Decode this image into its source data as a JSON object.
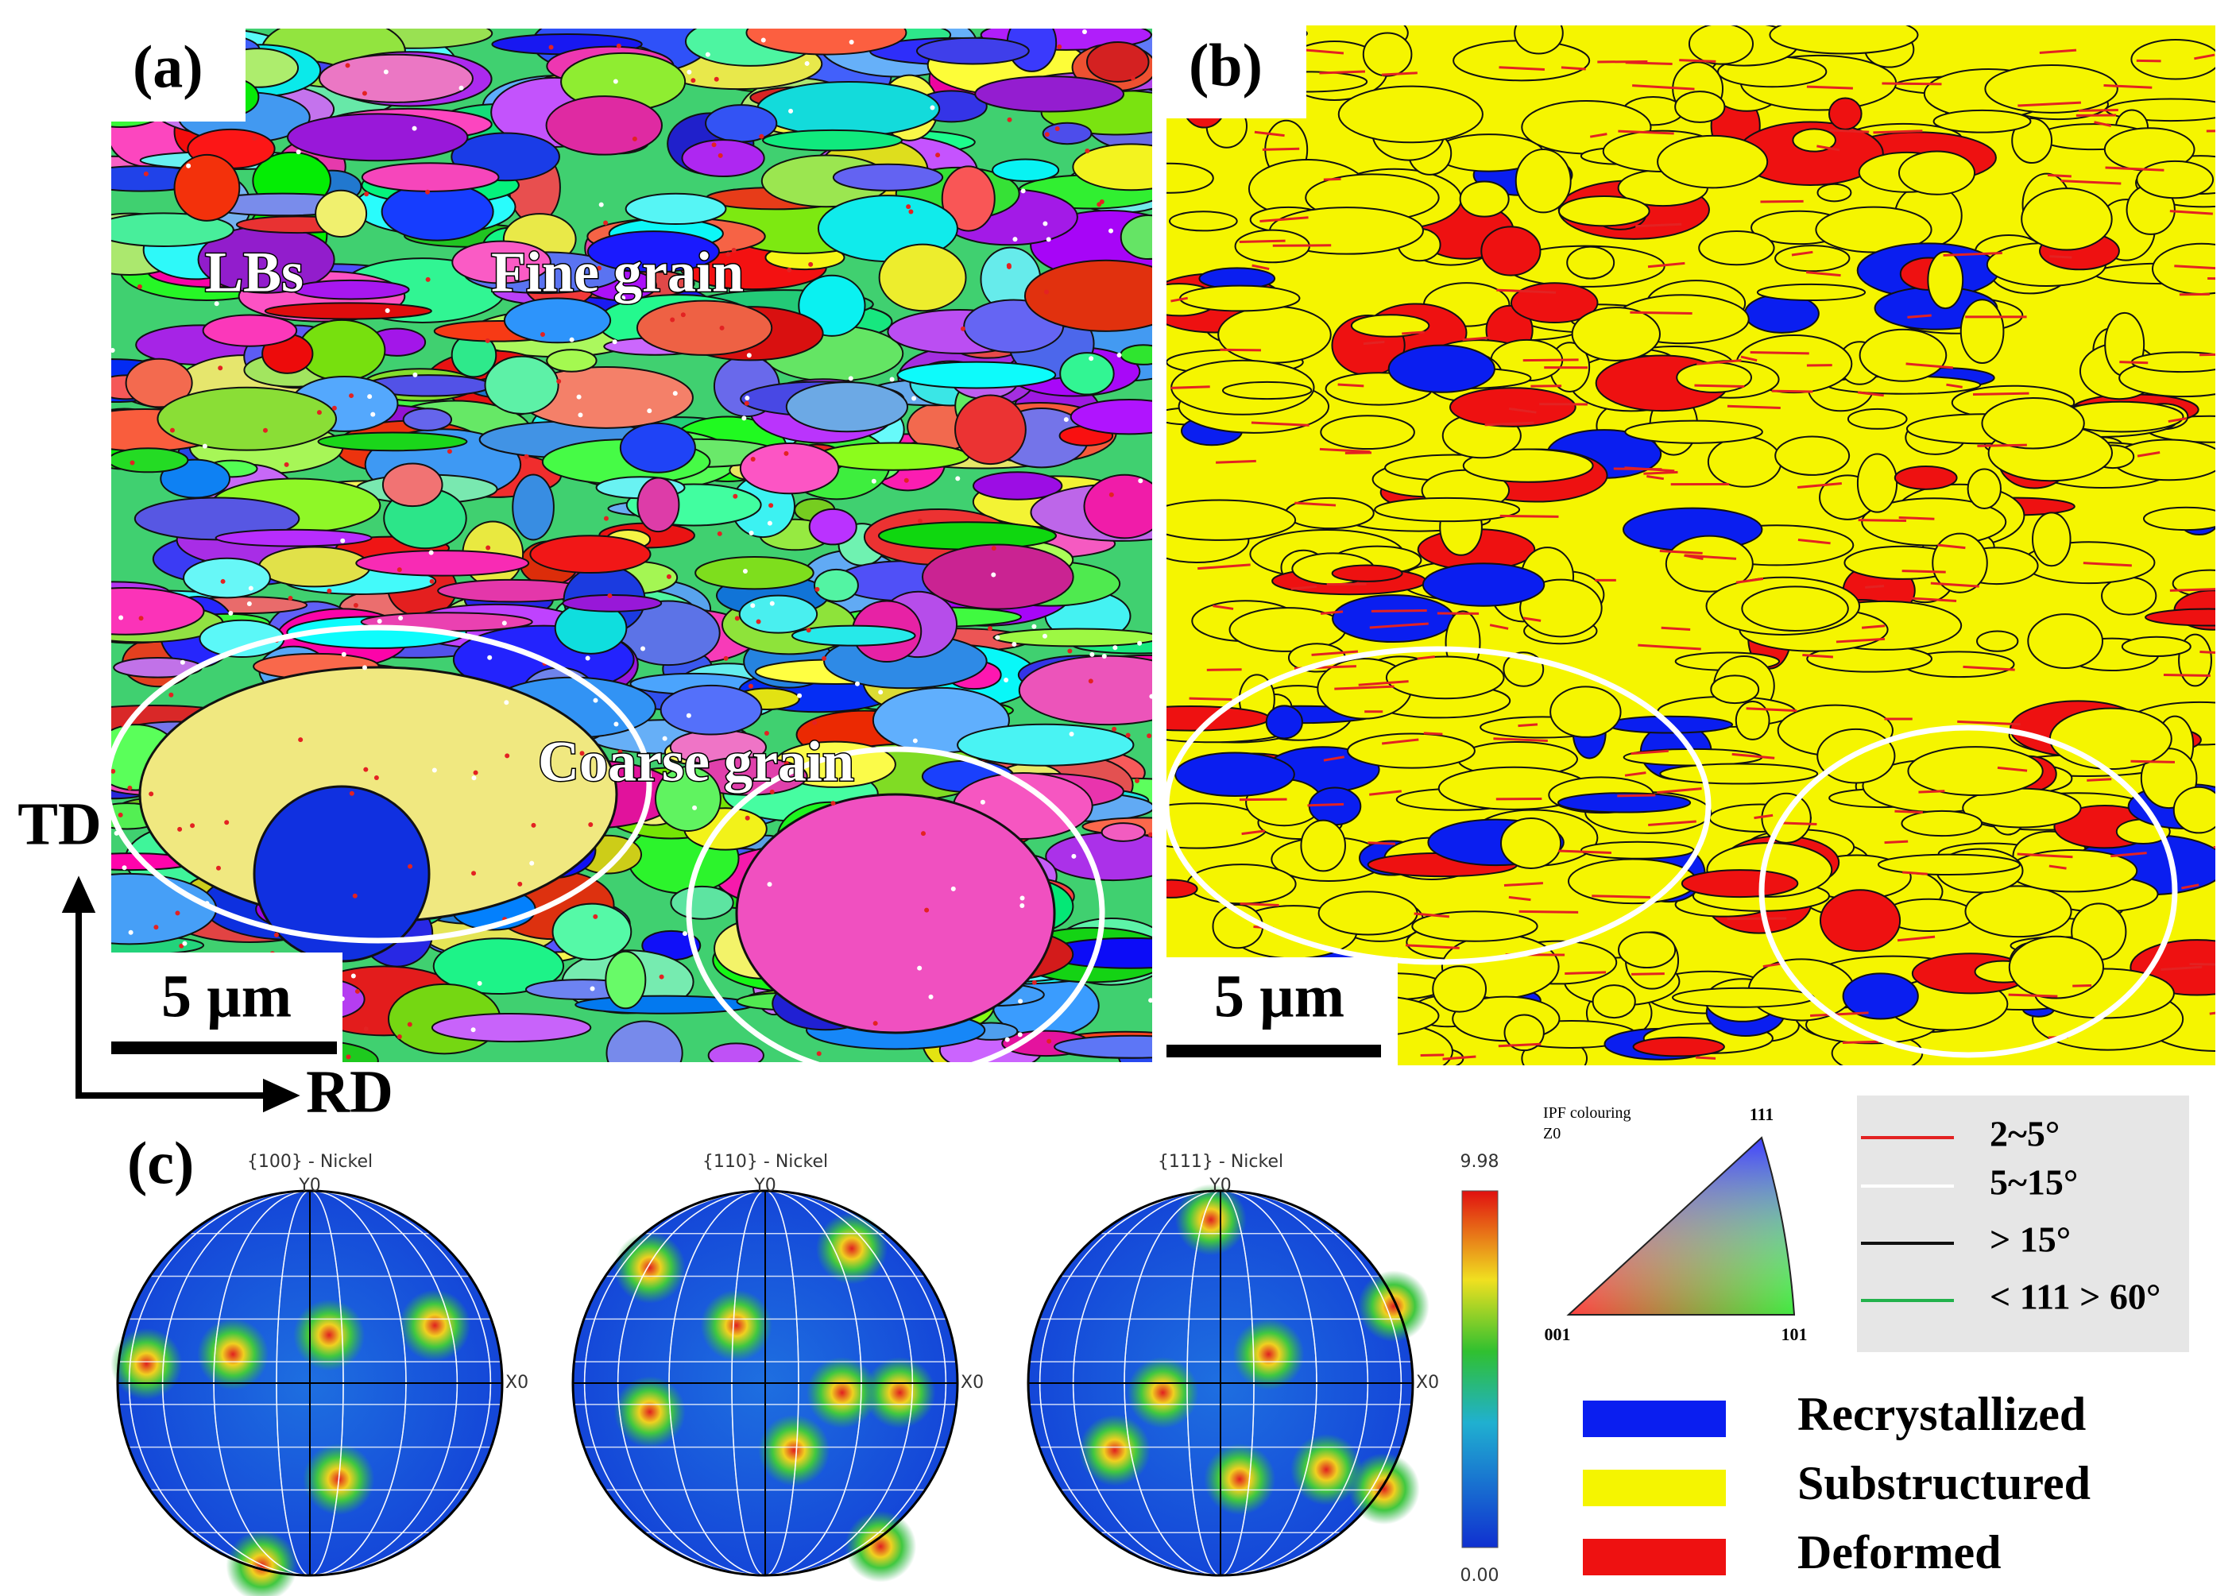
{
  "panels": {
    "a": {
      "label": "(a)",
      "annotations": [
        "LBs",
        "Fine grain",
        "Coarse grain"
      ],
      "scale_bar": "5 µm"
    },
    "b": {
      "label": "(b)",
      "scale_bar": "5 µm"
    },
    "c": {
      "label": "(c)"
    }
  },
  "axes": {
    "vertical": "TD",
    "horizontal": "RD"
  },
  "pole_figures": [
    {
      "title": "{100} - Nickel",
      "y_label": "Y0",
      "x_label": "X0"
    },
    {
      "title": "{110} - Nickel",
      "y_label": "Y0",
      "x_label": "X0"
    },
    {
      "title": "{111} - Nickel",
      "y_label": "Y0",
      "x_label": "X0"
    }
  ],
  "colorbar": {
    "max": "9.98",
    "min": "0.00"
  },
  "ipf": {
    "title": "IPF colouring",
    "direction": "Z0",
    "corners": [
      "111",
      "001",
      "101"
    ]
  },
  "boundary_legend": [
    {
      "label": "2~5°",
      "color": "#e32222"
    },
    {
      "label": "5~15°",
      "color": "#ffffff"
    },
    {
      "label": "> 15°",
      "color": "#111111"
    },
    {
      "label": "< 111 > 60°",
      "color": "#22b24c"
    }
  ],
  "recrystallization_legend": [
    {
      "label": "Recrystallized",
      "color": "#0a1ef0"
    },
    {
      "label": "Substructured",
      "color": "#f5f500"
    },
    {
      "label": "Deformed",
      "color": "#ee1111"
    }
  ]
}
